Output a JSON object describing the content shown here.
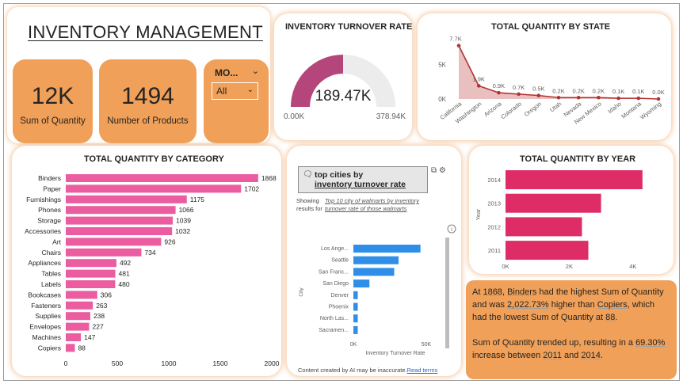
{
  "header": {
    "title": "INVENTORY MANAGEMENT"
  },
  "kpis": [
    {
      "value": "12K",
      "label": "Sum of Quantity"
    },
    {
      "value": "1494",
      "label": "Number of Products"
    }
  ],
  "slicer": {
    "label": "MO...",
    "selected": "All"
  },
  "gauge": {
    "title": "INVENTORY TURNOVER RATE",
    "value_label": "189.47K",
    "min_label": "0.00K",
    "max_label": "378.94K",
    "fraction": 0.5,
    "color": "#b5467b"
  },
  "state_chart": {
    "title": "TOTAL QUANTITY BY STATE",
    "y_ticks": [
      "0K",
      "5K"
    ],
    "color": "#b13232",
    "chart_data": {
      "type": "area",
      "x": [
        "California",
        "Washington",
        "Arizona",
        "Colorado",
        "Oregon",
        "Utah",
        "Nevada",
        "New Mexico",
        "Idaho",
        "Montana",
        "Wyoming"
      ],
      "values": [
        7.7,
        1.9,
        0.9,
        0.7,
        0.5,
        0.2,
        0.2,
        0.2,
        0.1,
        0.1,
        0.0
      ],
      "data_labels": [
        "7.7K",
        "1.9K",
        "0.9K",
        "0.7K",
        "0.5K",
        "0.2K",
        "0.2K",
        "0.2K",
        "0.1K",
        "0.1K",
        "0.0K"
      ],
      "unit": "K",
      "ylim": [
        0,
        8
      ]
    }
  },
  "category_chart": {
    "title": "TOTAL QUANTITY BY CATEGORY",
    "color": "#ec5ca0",
    "chart_data": {
      "type": "bar",
      "orientation": "horizontal",
      "categories": [
        "Binders",
        "Paper",
        "Furnishings",
        "Phones",
        "Storage",
        "Accessories",
        "Art",
        "Chairs",
        "Appliances",
        "Tables",
        "Labels",
        "Bookcases",
        "Fasteners",
        "Supplies",
        "Envelopes",
        "Machines",
        "Copiers"
      ],
      "values": [
        1868,
        1702,
        1175,
        1066,
        1039,
        1032,
        926,
        734,
        492,
        481,
        480,
        306,
        263,
        238,
        227,
        147,
        88
      ],
      "x_ticks": [
        0,
        500,
        1000,
        1500,
        2000
      ],
      "xlim": [
        0,
        2000
      ]
    }
  },
  "qa_visual": {
    "question_prefix": "top cities by",
    "question_emph": "inventory turnover rate",
    "showing_label": "Showing results for",
    "restatement": "Top 10 city of walmarts by inventory turnover rate of those walmarts",
    "footer_text": "Content created by AI may be inaccurate.",
    "footer_link": "Read terms",
    "color": "#2e8ee8",
    "chart_data": {
      "type": "bar",
      "orientation": "horizontal",
      "categories": [
        "Los Ange...",
        "Seattle",
        "San Franc...",
        "San Diego",
        "Denver",
        "Phoenix",
        "North Las...",
        "Sacramen..."
      ],
      "values": [
        46,
        31,
        28,
        11,
        3,
        3,
        3,
        3
      ],
      "x_ticks": [
        "0K",
        "50K"
      ],
      "xlim": [
        0,
        50
      ],
      "unit": "K",
      "xlabel": "Inventory Turnover Rate",
      "ylabel": "City"
    }
  },
  "year_chart": {
    "title": "TOTAL QUANTITY BY YEAR",
    "color": "#de2d66",
    "chart_data": {
      "type": "bar",
      "orientation": "horizontal",
      "categories": [
        "2014",
        "2013",
        "2012",
        "2011"
      ],
      "values": [
        4.3,
        3.0,
        2.4,
        2.6
      ],
      "x_ticks": [
        "0K",
        "2K",
        "4K"
      ],
      "xlim": [
        0,
        5
      ],
      "unit": "K",
      "ylabel": "Year"
    }
  },
  "narrative": {
    "p1": [
      {
        "text": "At "
      },
      {
        "text": "1868",
        "v": true
      },
      {
        "text": ", "
      },
      {
        "text": "Binders",
        "v": true
      },
      {
        "text": " had the highest Sum of Quantity and was "
      },
      {
        "text": "2,022.73%",
        "v": true
      },
      {
        "text": " higher than "
      },
      {
        "text": "Copiers",
        "v": true
      },
      {
        "text": ", which had the lowest Sum of Quantity at "
      },
      {
        "text": "88",
        "v": true
      },
      {
        "text": "."
      }
    ],
    "p2": [
      {
        "text": "Sum of Quantity trended up, resulting in a "
      },
      {
        "text": "69.30%",
        "v": true
      },
      {
        "text": " increase between "
      },
      {
        "text": "2011",
        "v": true
      },
      {
        "text": " and "
      },
      {
        "text": "2014",
        "v": true
      },
      {
        "text": "."
      }
    ]
  }
}
